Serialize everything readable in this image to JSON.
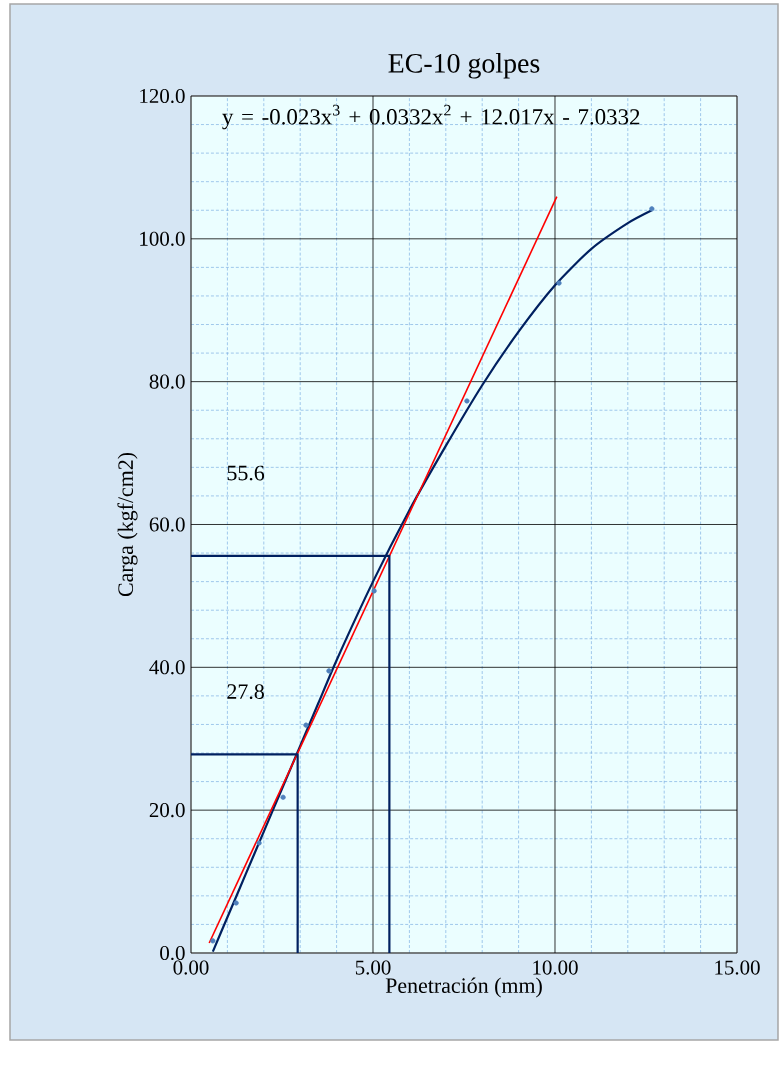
{
  "chart_data": {
    "type": "line",
    "title": "EC-10 golpes",
    "xlabel": "Penetración (mm)",
    "ylabel": "Carga (kgf/cm2)",
    "xlim": [
      0,
      15
    ],
    "ylim": [
      0,
      120
    ],
    "xticks": [
      {
        "value": 0,
        "label": "0.00"
      },
      {
        "value": 1,
        "label": null
      },
      {
        "value": 2,
        "label": null
      },
      {
        "value": 3,
        "label": null
      },
      {
        "value": 4,
        "label": null
      },
      {
        "value": 5,
        "label": "5.00"
      },
      {
        "value": 6,
        "label": null
      },
      {
        "value": 7,
        "label": null
      },
      {
        "value": 8,
        "label": null
      },
      {
        "value": 9,
        "label": null
      },
      {
        "value": 10,
        "label": "10.00"
      },
      {
        "value": 11,
        "label": null
      },
      {
        "value": 12,
        "label": null
      },
      {
        "value": 13,
        "label": null
      },
      {
        "value": 14,
        "label": null
      },
      {
        "value": 15,
        "label": "15.00"
      }
    ],
    "yticks": [
      {
        "value": 0,
        "label": "0.0"
      },
      {
        "value": 4,
        "label": null
      },
      {
        "value": 8,
        "label": null
      },
      {
        "value": 12,
        "label": null
      },
      {
        "value": 16,
        "label": null
      },
      {
        "value": 20,
        "label": "20.0"
      },
      {
        "value": 24,
        "label": null
      },
      {
        "value": 28,
        "label": null
      },
      {
        "value": 32,
        "label": null
      },
      {
        "value": 36,
        "label": null
      },
      {
        "value": 40,
        "label": "40.0"
      },
      {
        "value": 44,
        "label": null
      },
      {
        "value": 48,
        "label": null
      },
      {
        "value": 52,
        "label": null
      },
      {
        "value": 56,
        "label": null
      },
      {
        "value": 60,
        "label": "60.0"
      },
      {
        "value": 64,
        "label": null
      },
      {
        "value": 68,
        "label": null
      },
      {
        "value": 72,
        "label": null
      },
      {
        "value": 76,
        "label": null
      },
      {
        "value": 80,
        "label": "80.0"
      },
      {
        "value": 84,
        "label": null
      },
      {
        "value": 88,
        "label": null
      },
      {
        "value": 92,
        "label": null
      },
      {
        "value": 96,
        "label": null
      },
      {
        "value": 100,
        "label": "100.0"
      },
      {
        "value": 104,
        "label": null
      },
      {
        "value": 108,
        "label": null
      },
      {
        "value": 112,
        "label": null
      },
      {
        "value": 116,
        "label": null
      },
      {
        "value": 120,
        "label": "120.0"
      }
    ],
    "grid": true,
    "line_style": "solid",
    "annotations": [
      {
        "text": "y = -0.023x$^{3}$ + 0.0332x$^{2}$ + 12.017x - 7.0332"
      },
      "55.6",
      "27.8"
    ],
    "series": [
      {
        "type": "scatter",
        "marker": "circle",
        "color": "#4f81bd",
        "x": [
          0.6,
          1.24,
          1.87,
          2.53,
          3.16,
          3.79,
          5.03,
          7.58,
          10.11,
          12.66
        ],
        "values": [
          1.7,
          7.0,
          15.4,
          21.8,
          31.9,
          39.5,
          50.7,
          77.3,
          93.8,
          104.2
        ]
      },
      {
        "marker": "none",
        "color": "#002060",
        "x": [
          0.6,
          1,
          1.5,
          2,
          2.5,
          3,
          3.5,
          4,
          5,
          6,
          7,
          8,
          9,
          10,
          11,
          12,
          12.66
        ],
        "values": [
          0.2,
          5,
          11,
          17,
          23,
          29,
          35,
          41,
          52,
          62,
          71,
          79.5,
          87,
          93.5,
          98.6,
          102.2,
          104
        ]
      },
      {
        "marker": "none",
        "color": "#ff0000",
        "x": [
          0.5,
          10.05
        ],
        "values": [
          1.4,
          105.9
        ]
      },
      {
        "marker": "none",
        "color": "#002060",
        "x": [
          0,
          5.45,
          5.45
        ],
        "values": [
          55.6,
          55.6,
          0
        ]
      },
      {
        "marker": "none",
        "color": "#002060",
        "x": [
          0,
          2.93,
          2.93
        ],
        "values": [
          27.8,
          27.8,
          0
        ]
      }
    ]
  }
}
